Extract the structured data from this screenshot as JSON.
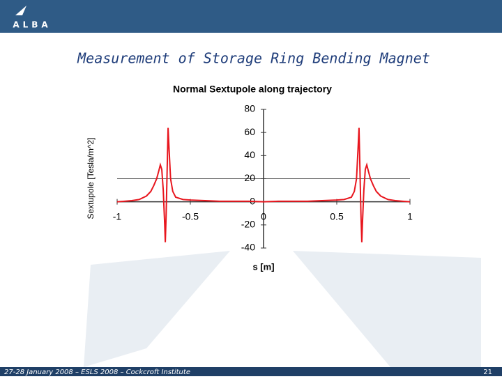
{
  "slide": {
    "logo": "ALBA",
    "title": "Measurement of Storage Ring Bending Magnet",
    "footer": "27-28 January 2008 – ESLS 2008 – Cockcroft Institute",
    "page_number": "21"
  },
  "chart_data": {
    "type": "line",
    "title": "Normal Sextupole along trajectory",
    "x_label": "s [m]",
    "y_label": "Sextupole [Tesla/m^2]",
    "x": [
      -1,
      -0.95,
      -0.9,
      -0.85,
      -0.8,
      -0.77,
      -0.75,
      -0.73,
      -0.715,
      -0.705,
      -0.695,
      -0.685,
      -0.675,
      -0.671,
      -0.665,
      -0.658,
      -0.652,
      -0.645,
      -0.635,
      -0.62,
      -0.6,
      -0.55,
      -0.5,
      -0.4,
      -0.3,
      -0.2,
      -0.1,
      0,
      0.1,
      0.2,
      0.3,
      0.4,
      0.5,
      0.55,
      0.6,
      0.62,
      0.635,
      0.645,
      0.652,
      0.658,
      0.665,
      0.671,
      0.675,
      0.685,
      0.695,
      0.705,
      0.715,
      0.73,
      0.75,
      0.77,
      0.8,
      0.85,
      0.9,
      0.95,
      1
    ],
    "series": [
      {
        "color": "#e8161e",
        "values": [
          0,
          0.5,
          1,
          2,
          5,
          9,
          14,
          20,
          27,
          32,
          28,
          10,
          -20,
          -35,
          -10,
          30,
          64,
          45,
          20,
          9,
          4,
          2,
          1.5,
          1,
          0.5,
          0.5,
          0.5,
          0,
          0.5,
          0.5,
          0.5,
          1,
          1.5,
          2,
          4,
          9,
          20,
          45,
          64,
          30,
          -10,
          -35,
          -20,
          10,
          28,
          32,
          27,
          20,
          14,
          9,
          5,
          2,
          1,
          0.5,
          0
        ]
      }
    ],
    "xlim": [
      -1,
      1
    ],
    "xticks": [
      -1,
      -0.5,
      0,
      0.5,
      1
    ],
    "ylim": [
      -40,
      80
    ],
    "yticks": [
      -40,
      -20,
      0,
      20,
      40,
      60,
      80
    ],
    "reference_line": 20
  }
}
